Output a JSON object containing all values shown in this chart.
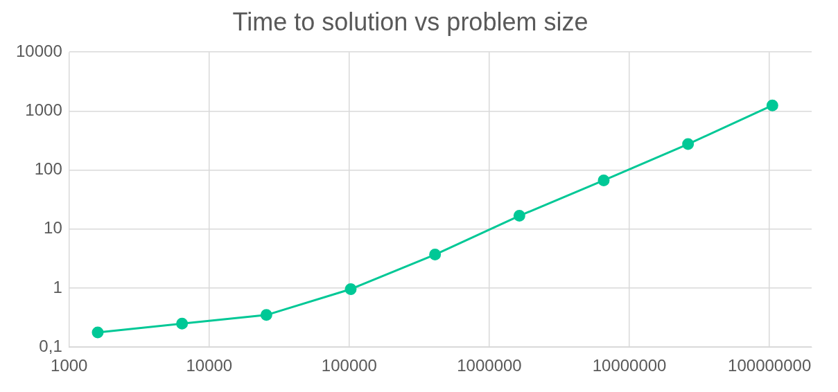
{
  "chart_data": {
    "type": "line",
    "title": "Time to solution vs problem size",
    "x": [
      1600,
      6400,
      25600,
      102400,
      409600,
      1638400,
      6553600,
      26214400,
      104857600
    ],
    "series": [
      {
        "color": "#00c896",
        "values": [
          0.177,
          0.25,
          0.35,
          0.96,
          3.7,
          16.8,
          67,
          276,
          1250
        ]
      }
    ],
    "log": "xy",
    "xlim": [
      1000,
      200000000
    ],
    "xticks": [
      1000,
      10000,
      100000,
      1000000,
      10000000,
      100000000
    ],
    "ylim": [
      0.1,
      10000
    ],
    "yticks": [
      {
        "value": 0.1,
        "label": "0,1"
      },
      1,
      10,
      100,
      1000,
      10000
    ],
    "grid": true,
    "legend": false,
    "marker": "circle",
    "line_style": "solid"
  }
}
